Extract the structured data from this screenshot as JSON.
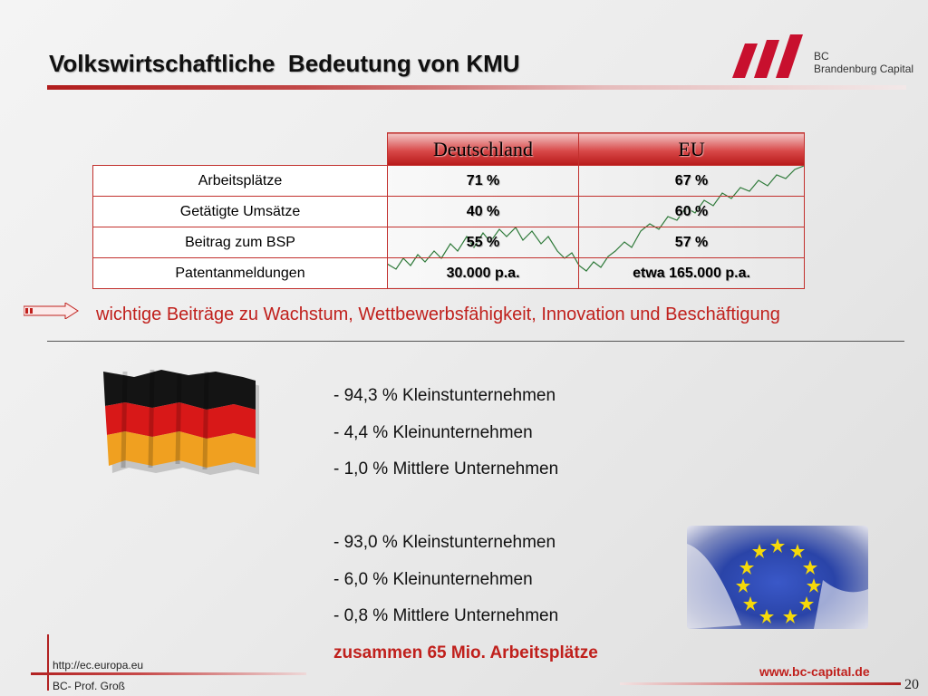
{
  "header": {
    "title": "Volkswirtschaftliche  Bedeutung von KMU",
    "logo": {
      "line1": "BC",
      "line2": "Brandenburg Capital",
      "brand_color": "#c8102e"
    }
  },
  "table": {
    "columns": [
      "Deutschland",
      "EU"
    ],
    "rows": [
      {
        "label": "Arbeitsplätze",
        "de": "71 %",
        "eu": "67 %"
      },
      {
        "label": "Getätigte Umsätze",
        "de": "40 %",
        "eu": "60 %"
      },
      {
        "label": "Beitrag zum BSP",
        "de": "55 %",
        "eu": "57 %"
      },
      {
        "label": "Patentanmeldungen",
        "de": "30.000 p.a.",
        "eu": "etwa 165.000 p.a."
      }
    ]
  },
  "highlight": {
    "icon": "arrow-right-icon",
    "text": "wichtige Beiträge zu Wachstum, Wettbewerbsfähigkeit, Innovation und Beschäftigung"
  },
  "germany": {
    "image": "germany-flag",
    "items": [
      "- 94,3 % Kleinstunternehmen",
      "- 4,4 % Kleinunternehmen",
      "- 1,0 % Mittlere Unternehmen"
    ]
  },
  "eu": {
    "image": "eu-flag-photo",
    "items": [
      "- 93,0 % Kleinstunternehmen",
      "- 6,0 % Kleinunternehmen",
      "- 0,8 % Mittlere Unternehmen"
    ],
    "total": "zusammen 65 Mio. Arbeitsplätze"
  },
  "footer": {
    "url": "http://ec.europa.eu",
    "author": "BC- Prof. Groß",
    "website": "www.bc-capital.de",
    "page": "20"
  },
  "colors": {
    "accent": "#c0201c",
    "table_border": "#c2302d"
  }
}
